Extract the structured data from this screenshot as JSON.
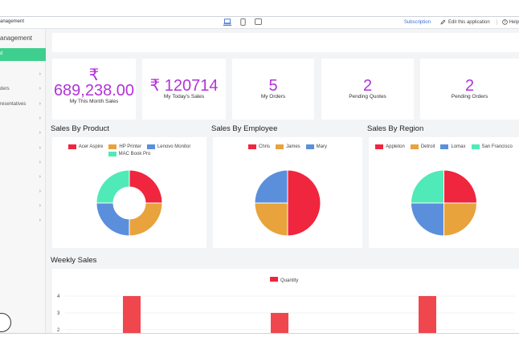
{
  "app": {
    "title": "anagement"
  },
  "topbar": {
    "subscription": "Subscription",
    "edit": "Edit this application",
    "help": "Help"
  },
  "sidebar": {
    "title": "anagement",
    "active": "d",
    "items": [
      {
        "label": ""
      },
      {
        "label": "ders"
      },
      {
        "label": "resentatives"
      },
      {
        "label": ""
      },
      {
        "label": ""
      },
      {
        "label": ""
      },
      {
        "label": ""
      },
      {
        "label": ""
      },
      {
        "label": ""
      },
      {
        "label": ""
      },
      {
        "label": ""
      }
    ]
  },
  "kpis": [
    {
      "symbol": "₹",
      "value": "689,238.00",
      "label": "My This Month Sales"
    },
    {
      "value": "₹ 120714",
      "label": "My Today's Sales"
    },
    {
      "value": "5",
      "label": "My Orders"
    },
    {
      "value": "2",
      "label": "Pending Quotes"
    },
    {
      "value": "2",
      "label": "Pending Orders"
    }
  ],
  "colors": {
    "red": "#f0253e",
    "orange": "#e8a33d",
    "blue": "#5b8fdc",
    "mint": "#4feab7",
    "kpi": "#b233d8"
  },
  "chart_data": [
    {
      "type": "pie",
      "variant": "doughnut",
      "title": "Sales By Product",
      "legend": "top",
      "labels": [
        "Acer Aspire",
        "HP Printer",
        "Lenovo Monitor",
        "MAC Book Pro"
      ],
      "values": [
        25,
        25,
        25,
        25
      ],
      "colors": [
        "#f0253e",
        "#e8a33d",
        "#5b8fdc",
        "#4feab7"
      ]
    },
    {
      "type": "pie",
      "title": "Sales By Employee",
      "legend": "top",
      "labels": [
        "Chris",
        "James",
        "Mary"
      ],
      "values": [
        50,
        25,
        25
      ],
      "colors": [
        "#f0253e",
        "#e8a33d",
        "#5b8fdc"
      ]
    },
    {
      "type": "pie",
      "title": "Sales By Region",
      "legend": "top",
      "labels": [
        "Appleton",
        "Detroit",
        "Lomax",
        "San Francisco"
      ],
      "values": [
        25,
        25,
        25,
        25
      ],
      "colors": [
        "#f0253e",
        "#e8a33d",
        "#5b8fdc",
        "#4feab7"
      ]
    },
    {
      "type": "bar",
      "title": "Weekly Sales",
      "legend": "top",
      "series": [
        {
          "name": "Quantity",
          "values": [
            4,
            3,
            4
          ]
        }
      ],
      "categories": [
        "",
        "",
        ""
      ],
      "y_ticks": [
        "4",
        "3",
        "2"
      ],
      "color": "#f0474f"
    }
  ]
}
